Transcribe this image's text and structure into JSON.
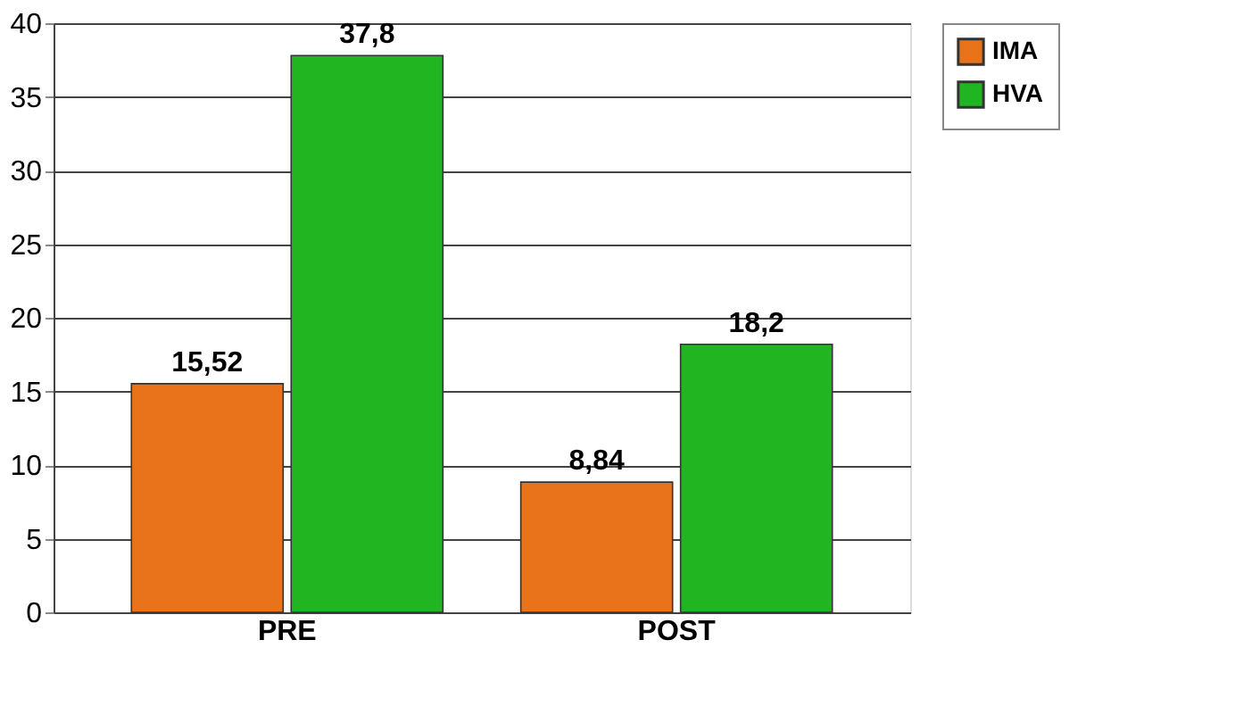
{
  "chart_data": {
    "type": "bar",
    "categories": [
      "PRE",
      "POST"
    ],
    "series": [
      {
        "name": "IMA",
        "color": "#e8731a",
        "values": [
          15.52,
          8.84
        ],
        "value_labels": [
          "15,52",
          "8,84"
        ]
      },
      {
        "name": "HVA",
        "color": "#22b522",
        "values": [
          37.8,
          18.2
        ],
        "value_labels": [
          "37,8",
          "18,2"
        ]
      }
    ],
    "ylim": [
      0,
      40
    ],
    "yticks": [
      0,
      5,
      10,
      15,
      20,
      25,
      30,
      35,
      40
    ],
    "grid": "y",
    "legend": "right"
  }
}
